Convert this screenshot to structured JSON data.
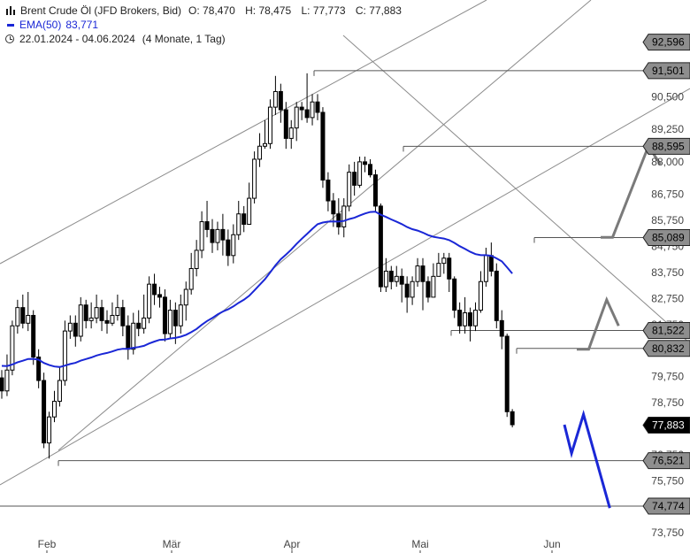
{
  "legend": {
    "instrument": "Brent Crude Öl (JFD Brokers, Bid)",
    "open": "O: 78,470",
    "high": "H: 78,475",
    "low": "L: 77,773",
    "close": "C: 77,883",
    "ema_label": "EMA(50)",
    "ema_value": "83,771",
    "date_range": "22.01.2024 - 04.06.2024",
    "period": "(4 Monate, 1 Tag)"
  },
  "chart_data": {
    "type": "candlestick",
    "y_axis_ticks": [
      "92,596",
      "91,501",
      "90,500",
      "89,250",
      "88,000",
      "86,750",
      "85,750",
      "84,750",
      "83,750",
      "82,750",
      "81,750",
      "79,750",
      "78,750",
      "76,750",
      "75,750",
      "73,750"
    ],
    "x_axis_ticks": [
      "Feb",
      "Mär",
      "Apr",
      "Mai",
      "Jun"
    ],
    "boxed_price_labels": [
      "92,596",
      "91,501",
      "88,595",
      "85,089",
      "81,522",
      "80,832",
      "76,521",
      "74,774"
    ],
    "current_price_label": "77,883",
    "horizontal_levels": [
      91.501,
      88.595,
      85.089,
      81.522,
      80.832,
      76.521,
      74.774
    ],
    "ema": {
      "name": "EMA(50)",
      "color": "#1a27d6",
      "last": 83.771
    },
    "candles": [
      [
        79.7,
        79.2,
        80.0,
        78.9
      ],
      [
        79.2,
        80.0,
        80.6,
        79.0
      ],
      [
        80.0,
        81.7,
        81.9,
        79.8
      ],
      [
        81.7,
        82.4,
        82.7,
        81.4
      ],
      [
        82.4,
        81.8,
        82.9,
        81.6
      ],
      [
        81.8,
        82.1,
        83.0,
        81.5
      ],
      [
        82.1,
        80.5,
        82.3,
        80.2
      ],
      [
        80.5,
        79.6,
        80.8,
        79.3
      ],
      [
        79.6,
        77.2,
        79.9,
        77.0
      ],
      [
        77.2,
        78.2,
        78.4,
        76.6
      ],
      [
        78.2,
        78.8,
        79.2,
        78.0
      ],
      [
        78.8,
        79.6,
        80.1,
        78.6
      ],
      [
        79.6,
        81.5,
        81.9,
        79.4
      ],
      [
        81.5,
        81.8,
        82.1,
        81.2
      ],
      [
        81.8,
        81.3,
        82.1,
        80.9
      ],
      [
        81.3,
        82.5,
        82.8,
        81.1
      ],
      [
        82.5,
        81.9,
        82.7,
        81.6
      ],
      [
        81.9,
        82.0,
        82.6,
        81.6
      ],
      [
        82.0,
        82.4,
        82.9,
        81.8
      ],
      [
        82.4,
        81.9,
        82.7,
        81.5
      ],
      [
        81.9,
        81.8,
        82.3,
        81.4
      ],
      [
        81.8,
        82.1,
        82.6,
        81.7
      ],
      [
        82.1,
        82.4,
        82.9,
        81.9
      ],
      [
        82.4,
        81.7,
        82.7,
        81.3
      ],
      [
        81.7,
        80.8,
        82.1,
        80.4
      ],
      [
        80.8,
        81.8,
        82.2,
        80.6
      ],
      [
        81.8,
        81.6,
        82.3,
        81.3
      ],
      [
        81.6,
        82.0,
        82.9,
        81.4
      ],
      [
        82.0,
        83.3,
        83.6,
        81.8
      ],
      [
        83.3,
        82.9,
        83.7,
        82.5
      ],
      [
        82.9,
        82.8,
        83.2,
        82.4
      ],
      [
        82.8,
        81.4,
        83.1,
        81.1
      ],
      [
        81.4,
        82.3,
        82.7,
        81.2
      ],
      [
        82.3,
        81.7,
        82.6,
        81.0
      ],
      [
        81.7,
        82.5,
        82.9,
        81.4
      ],
      [
        82.5,
        83.1,
        83.4,
        81.9
      ],
      [
        83.1,
        83.9,
        84.5,
        82.9
      ],
      [
        83.9,
        84.6,
        85.0,
        83.6
      ],
      [
        84.6,
        85.7,
        86.1,
        84.3
      ],
      [
        85.7,
        85.4,
        86.5,
        85.1
      ],
      [
        85.4,
        84.9,
        85.8,
        84.5
      ],
      [
        84.9,
        85.4,
        85.7,
        84.6
      ],
      [
        85.4,
        85.0,
        86.0,
        84.4
      ],
      [
        85.0,
        84.4,
        85.4,
        84.0
      ],
      [
        84.4,
        85.2,
        85.6,
        84.1
      ],
      [
        85.2,
        86.0,
        86.5,
        85.0
      ],
      [
        86.0,
        85.6,
        86.3,
        85.3
      ],
      [
        85.6,
        86.6,
        87.2,
        86.3
      ],
      [
        86.6,
        88.1,
        88.4,
        86.4
      ],
      [
        88.1,
        88.6,
        89.1,
        87.8
      ],
      [
        88.6,
        88.7,
        89.6,
        88.5
      ],
      [
        88.7,
        90.1,
        90.4,
        88.5
      ],
      [
        90.1,
        90.7,
        91.3,
        89.8
      ],
      [
        90.7,
        90.0,
        91.0,
        89.5
      ],
      [
        90.0,
        88.9,
        90.3,
        88.5
      ],
      [
        88.9,
        89.3,
        89.6,
        88.5
      ],
      [
        89.3,
        90.1,
        90.3,
        88.8
      ],
      [
        90.1,
        90.0,
        90.3,
        89.6
      ],
      [
        90.0,
        89.7,
        91.4,
        89.5
      ],
      [
        89.7,
        90.3,
        90.6,
        89.4
      ],
      [
        90.3,
        89.9,
        90.6,
        89.6
      ],
      [
        89.9,
        87.3,
        90.1,
        87.0
      ],
      [
        87.3,
        86.5,
        87.6,
        86.1
      ],
      [
        86.5,
        86.0,
        86.8,
        85.5
      ],
      [
        86.0,
        85.5,
        86.6,
        85.2
      ],
      [
        85.5,
        86.3,
        86.6,
        85.1
      ],
      [
        86.3,
        87.6,
        87.9,
        86.1
      ],
      [
        87.6,
        87.1,
        88.0,
        86.7
      ],
      [
        87.1,
        88.0,
        88.2,
        87.0
      ],
      [
        88.0,
        87.9,
        88.2,
        87.6
      ],
      [
        87.9,
        87.5,
        88.1,
        87.4
      ],
      [
        87.5,
        86.3,
        87.7,
        86.1
      ],
      [
        86.3,
        83.2,
        86.4,
        83.0
      ],
      [
        83.2,
        83.8,
        84.3,
        83.0
      ],
      [
        83.8,
        83.4,
        84.0,
        83.1
      ],
      [
        83.4,
        83.6,
        84.0,
        83.2
      ],
      [
        83.6,
        83.3,
        83.9,
        82.6
      ],
      [
        83.3,
        82.8,
        83.6,
        82.2
      ],
      [
        82.8,
        83.4,
        83.6,
        82.5
      ],
      [
        83.4,
        84.0,
        84.3,
        83.2
      ],
      [
        84.0,
        83.4,
        84.3,
        82.3
      ],
      [
        83.4,
        82.8,
        83.6,
        82.6
      ],
      [
        82.8,
        83.6,
        84.1,
        83.4
      ],
      [
        83.6,
        84.1,
        84.5,
        83.8
      ],
      [
        84.1,
        84.3,
        84.5,
        83.7
      ],
      [
        84.3,
        83.5,
        84.5,
        83.0
      ],
      [
        83.5,
        82.3,
        83.6,
        82.0
      ],
      [
        82.3,
        81.7,
        82.6,
        81.4
      ],
      [
        81.7,
        82.2,
        82.8,
        81.4
      ],
      [
        82.2,
        81.7,
        82.4,
        81.1
      ],
      [
        81.7,
        82.3,
        82.6,
        81.5
      ],
      [
        82.3,
        83.4,
        83.8,
        82.2
      ],
      [
        83.4,
        84.4,
        84.7,
        83.2
      ],
      [
        84.4,
        83.8,
        84.9,
        83.6
      ],
      [
        83.8,
        81.9,
        84.1,
        81.6
      ],
      [
        81.9,
        81.3,
        82.3,
        80.8
      ],
      [
        81.3,
        78.4,
        81.4,
        78.2
      ],
      [
        78.4,
        77.9,
        78.5,
        77.8
      ]
    ],
    "projection_paths": [
      {
        "color": "#7a7a7a",
        "points": [
          [
            0,
            85.1
          ],
          [
            1,
            85.1
          ],
          [
            4,
            88.6
          ],
          [
            5,
            87.9
          ]
        ]
      },
      {
        "color": "#7a7a7a",
        "points": [
          [
            0,
            80.8
          ],
          [
            1,
            80.8
          ],
          [
            2.5,
            82.7
          ],
          [
            3.5,
            81.7
          ]
        ]
      },
      {
        "color": "#1a27d6",
        "points": [
          [
            0,
            77.9
          ],
          [
            0.6,
            76.8
          ],
          [
            1.6,
            78.3
          ],
          [
            3.8,
            74.7
          ]
        ]
      }
    ]
  }
}
